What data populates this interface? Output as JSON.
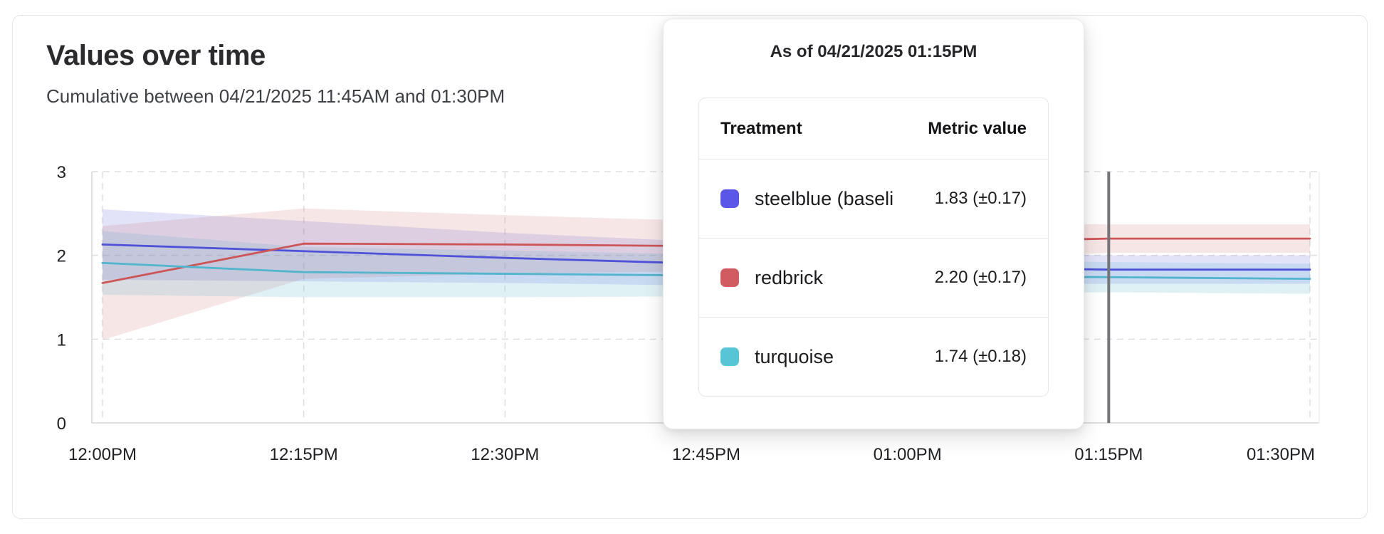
{
  "header": {
    "title": "Values over time",
    "subtitle": "Cumulative between 04/21/2025 11:45AM and 01:30PM"
  },
  "tooltip": {
    "title": "As of 04/21/2025 01:15PM",
    "columns": [
      "Treatment",
      "Metric value"
    ],
    "rows": [
      {
        "name": "steelblue  (baseli",
        "value": "1.83 (±0.17)",
        "color": "#5a57e8"
      },
      {
        "name": "redbrick",
        "value": "2.20 (±0.17)",
        "color": "#d05b60"
      },
      {
        "name": "turquoise",
        "value": "1.74 (±0.18)",
        "color": "#58c5d6"
      }
    ]
  },
  "chart_data": {
    "type": "line",
    "title": "Values over time",
    "xlabel": "",
    "ylabel": "",
    "x_ticks": [
      "12:00PM",
      "12:15PM",
      "12:30PM",
      "12:45PM",
      "01:00PM",
      "01:15PM",
      "01:30PM"
    ],
    "y_ticks": [
      0,
      1,
      2,
      3
    ],
    "ylim": [
      0,
      3
    ],
    "grid": "dashed",
    "legend_position": "none",
    "hover_x": "01:15PM",
    "hover_line_color": "#757578",
    "series": [
      {
        "name": "steelblue (baseline)",
        "color": "#4d52d8",
        "band_opacity": 0.16,
        "values": [
          2.13,
          2.05,
          1.97,
          1.9,
          1.86,
          1.83,
          1.83
        ],
        "err": [
          0.42,
          0.36,
          0.3,
          0.26,
          0.21,
          0.17,
          0.17
        ]
      },
      {
        "name": "redbrick",
        "color": "#cc5558",
        "band_opacity": 0.15,
        "values": [
          1.67,
          2.14,
          2.13,
          2.11,
          2.15,
          2.2,
          2.2
        ],
        "err": [
          0.68,
          0.42,
          0.35,
          0.3,
          0.24,
          0.17,
          0.17
        ]
      },
      {
        "name": "turquoise",
        "color": "#52b4cd",
        "band_opacity": 0.18,
        "values": [
          1.91,
          1.8,
          1.78,
          1.76,
          1.75,
          1.74,
          1.72
        ],
        "err": [
          0.38,
          0.3,
          0.28,
          0.25,
          0.22,
          0.18,
          0.18
        ]
      }
    ]
  }
}
